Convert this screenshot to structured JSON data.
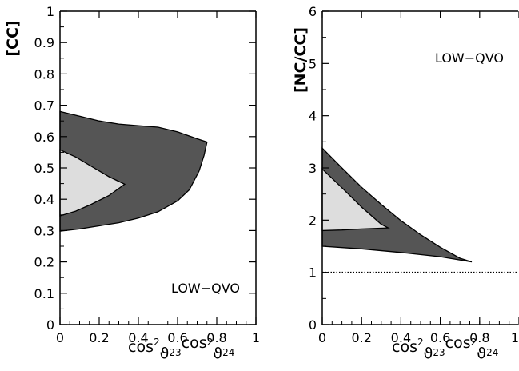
{
  "chart_data": [
    {
      "type": "area",
      "ylabel": "[CC]",
      "xlabel": {
        "base": "cos",
        "sup": "2",
        "sym": "ϑ",
        "sub1": "23",
        "sub2": "24"
      },
      "xlim": [
        0,
        1
      ],
      "ylim": [
        0,
        1
      ],
      "xticks": [
        "0",
        "0.2",
        "0.4",
        "0.6",
        "0.8",
        "1"
      ],
      "xtick_values": [
        0,
        0.2,
        0.4,
        0.6,
        0.8,
        1
      ],
      "yticks": [
        "0",
        "0.1",
        "0.2",
        "0.3",
        "0.4",
        "0.5",
        "0.6",
        "0.7",
        "0.8",
        "0.9",
        "1"
      ],
      "ytick_values": [
        0,
        0.1,
        0.2,
        0.3,
        0.4,
        0.5,
        0.6,
        0.7,
        0.8,
        0.9,
        1
      ],
      "annotation": "LOW−QVO",
      "regions": [
        {
          "fill": "#555555",
          "points": [
            [
              0,
              0.68
            ],
            [
              0.1,
              0.665
            ],
            [
              0.2,
              0.65
            ],
            [
              0.3,
              0.64
            ],
            [
              0.4,
              0.635
            ],
            [
              0.5,
              0.63
            ],
            [
              0.6,
              0.615
            ],
            [
              0.7,
              0.593
            ],
            [
              0.75,
              0.583
            ],
            [
              0.735,
              0.54
            ],
            [
              0.71,
              0.49
            ],
            [
              0.66,
              0.43
            ],
            [
              0.6,
              0.395
            ],
            [
              0.5,
              0.36
            ],
            [
              0.4,
              0.34
            ],
            [
              0.3,
              0.325
            ],
            [
              0.2,
              0.315
            ],
            [
              0.1,
              0.305
            ],
            [
              0,
              0.298
            ]
          ]
        },
        {
          "fill": "#dddddd",
          "points": [
            [
              0,
              0.558
            ],
            [
              0.08,
              0.535
            ],
            [
              0.16,
              0.505
            ],
            [
              0.25,
              0.472
            ],
            [
              0.33,
              0.448
            ],
            [
              0.25,
              0.412
            ],
            [
              0.16,
              0.384
            ],
            [
              0.08,
              0.362
            ],
            [
              0,
              0.347
            ]
          ]
        }
      ]
    },
    {
      "type": "area",
      "ylabel": "[NC/CC]",
      "xlabel": {
        "base": "cos",
        "sup": "2",
        "sym": "ϑ",
        "sub1": "23",
        "sub2": "24"
      },
      "xlim": [
        0,
        1
      ],
      "ylim": [
        0,
        6
      ],
      "xticks": [
        "0",
        "0.2",
        "0.4",
        "0.6",
        "0.8",
        "1"
      ],
      "xtick_values": [
        0,
        0.2,
        0.4,
        0.6,
        0.8,
        1
      ],
      "yticks": [
        "0",
        "1",
        "2",
        "3",
        "4",
        "5",
        "6"
      ],
      "ytick_values": [
        0,
        1,
        2,
        3,
        4,
        5,
        6
      ],
      "annotation": "LOW−QVO",
      "reference_line": {
        "y": 1,
        "style": "dotted"
      },
      "regions": [
        {
          "fill": "#555555",
          "points": [
            [
              0,
              3.38
            ],
            [
              0.1,
              3.0
            ],
            [
              0.2,
              2.63
            ],
            [
              0.3,
              2.3
            ],
            [
              0.4,
              1.99
            ],
            [
              0.5,
              1.72
            ],
            [
              0.6,
              1.48
            ],
            [
              0.7,
              1.27
            ],
            [
              0.76,
              1.2
            ],
            [
              0.6,
              1.3
            ],
            [
              0.4,
              1.38
            ],
            [
              0.2,
              1.45
            ],
            [
              0,
              1.5
            ]
          ]
        },
        {
          "fill": "#dddddd",
          "points": [
            [
              0,
              2.98
            ],
            [
              0.1,
              2.62
            ],
            [
              0.2,
              2.25
            ],
            [
              0.3,
              1.92
            ],
            [
              0.335,
              1.85
            ],
            [
              0.2,
              1.83
            ],
            [
              0.1,
              1.81
            ],
            [
              0,
              1.8
            ]
          ]
        }
      ]
    }
  ]
}
